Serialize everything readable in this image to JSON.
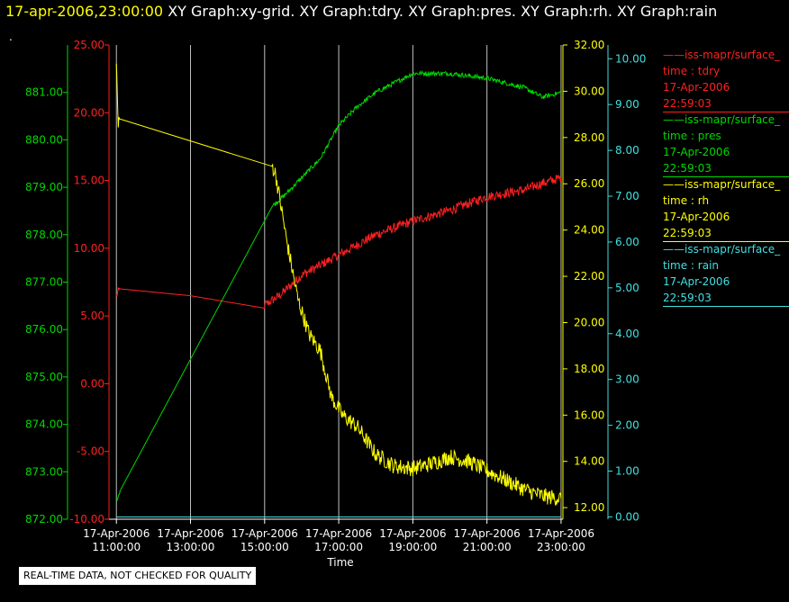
{
  "header": {
    "timestamp": "17-apr-2006,23:00:00",
    "graphs": "XY Graph:xy-grid.  XY Graph:tdry.  XY Graph:pres.  XY Graph:rh.  XY Graph:rain"
  },
  "dot": ".",
  "quality_note": "REAL-TIME DATA, NOT CHECKED FOR QUALITY",
  "colors": {
    "tdry": "#ff2020",
    "pres": "#00d800",
    "rh": "#ffff00",
    "rain": "#40e0e0",
    "grid": "#c0c0c0"
  },
  "legend": [
    {
      "title": "iss-mapr/surface_",
      "var": "time : tdry",
      "date": "17-Apr-2006",
      "time": "22:59:03",
      "color_key": "tdry"
    },
    {
      "title": "iss-mapr/surface_",
      "var": "time : pres",
      "date": "17-Apr-2006",
      "time": "22:59:03",
      "color_key": "pres"
    },
    {
      "title": "iss-mapr/surface_",
      "var": "time : rh",
      "date": "17-Apr-2006",
      "time": "22:59:03",
      "color_key": "rh"
    },
    {
      "title": "iss-mapr/surface_",
      "var": "time : rain",
      "date": "17-Apr-2006",
      "time": "22:59:03",
      "color_key": "rain"
    }
  ],
  "chart_data": {
    "type": "line",
    "xlabel": "Time",
    "x_ticks": [
      {
        "date": "17-Apr-2006",
        "time": "11:00:00",
        "hour": 11
      },
      {
        "date": "17-Apr-2006",
        "time": "13:00:00",
        "hour": 13
      },
      {
        "date": "17-Apr-2006",
        "time": "15:00:00",
        "hour": 15
      },
      {
        "date": "17-Apr-2006",
        "time": "17:00:00",
        "hour": 17
      },
      {
        "date": "17-Apr-2006",
        "time": "19:00:00",
        "hour": 19
      },
      {
        "date": "17-Apr-2006",
        "time": "21:00:00",
        "hour": 21
      },
      {
        "date": "17-Apr-2006",
        "time": "23:00:00",
        "hour": 23
      }
    ],
    "xlim_hours": [
      10.8,
      23.05
    ],
    "vertical_grid": true,
    "axes": {
      "pres": {
        "ylim": [
          872,
          882
        ],
        "ticks": [
          "872.00",
          "873.00",
          "874.00",
          "875.00",
          "876.00",
          "877.00",
          "878.00",
          "879.00",
          "880.00",
          "881.00"
        ]
      },
      "tdry": {
        "ylim": [
          -10,
          25
        ],
        "ticks": [
          "-10.00",
          "-5.00",
          "0.00",
          "5.00",
          "10.00",
          "15.00",
          "20.00",
          "25.00"
        ]
      },
      "rh": {
        "ylim": [
          11.5,
          32
        ],
        "ticks": [
          "12.00",
          "14.00",
          "16.00",
          "18.00",
          "20.00",
          "22.00",
          "24.00",
          "26.00",
          "28.00",
          "30.00",
          "32.00"
        ]
      },
      "rain": {
        "ylim": [
          -0.05,
          10.3
        ],
        "ticks": [
          "0.00",
          "1.00",
          "2.00",
          "3.00",
          "4.00",
          "5.00",
          "6.00",
          "7.00",
          "8.00",
          "9.00",
          "10.00"
        ]
      }
    },
    "series": [
      {
        "name": "tdry",
        "axis": "tdry",
        "x": [
          11.0,
          11.1,
          13.0,
          15.0,
          15.4,
          16.0,
          17.0,
          18.0,
          19.0,
          20.0,
          21.0,
          22.0,
          22.5,
          23.0
        ],
        "y": [
          6.5,
          7.0,
          6.5,
          5.8,
          6.5,
          8.0,
          9.5,
          11.0,
          12.0,
          12.8,
          13.8,
          14.3,
          14.8,
          15.2
        ],
        "noise": 0.35
      },
      {
        "name": "pres",
        "axis": "pres",
        "x": [
          11.0,
          11.1,
          15.2,
          15.5,
          16.0,
          16.5,
          17.0,
          17.5,
          18.0,
          18.5,
          19.0,
          20.0,
          21.0,
          22.0,
          22.5,
          23.0
        ],
        "y": [
          872.4,
          872.6,
          878.6,
          878.8,
          879.2,
          879.6,
          880.3,
          880.7,
          881.0,
          881.2,
          881.4,
          881.4,
          881.3,
          881.1,
          880.9,
          881.0
        ],
        "noise": 0.05
      },
      {
        "name": "rh",
        "axis": "rh",
        "x": [
          11.0,
          11.02,
          11.05,
          11.1,
          15.2,
          15.3,
          15.6,
          15.9,
          16.2,
          16.5,
          16.8,
          17.1,
          17.5,
          18.0,
          18.5,
          19.0,
          19.5,
          20.0,
          20.5,
          21.0,
          21.5,
          22.0,
          22.5,
          23.0
        ],
        "y": [
          31.5,
          30.0,
          28.5,
          28.8,
          26.8,
          26.4,
          23.5,
          21.0,
          19.5,
          18.8,
          16.8,
          16.0,
          15.5,
          14.3,
          13.8,
          13.7,
          13.9,
          14.2,
          14.0,
          13.6,
          13.2,
          12.8,
          12.5,
          12.4
        ],
        "noise": 0.35
      },
      {
        "name": "rain",
        "axis": "rain",
        "x": [
          11.0,
          23.0
        ],
        "y": [
          0.0,
          0.0
        ],
        "noise": 0
      }
    ]
  }
}
